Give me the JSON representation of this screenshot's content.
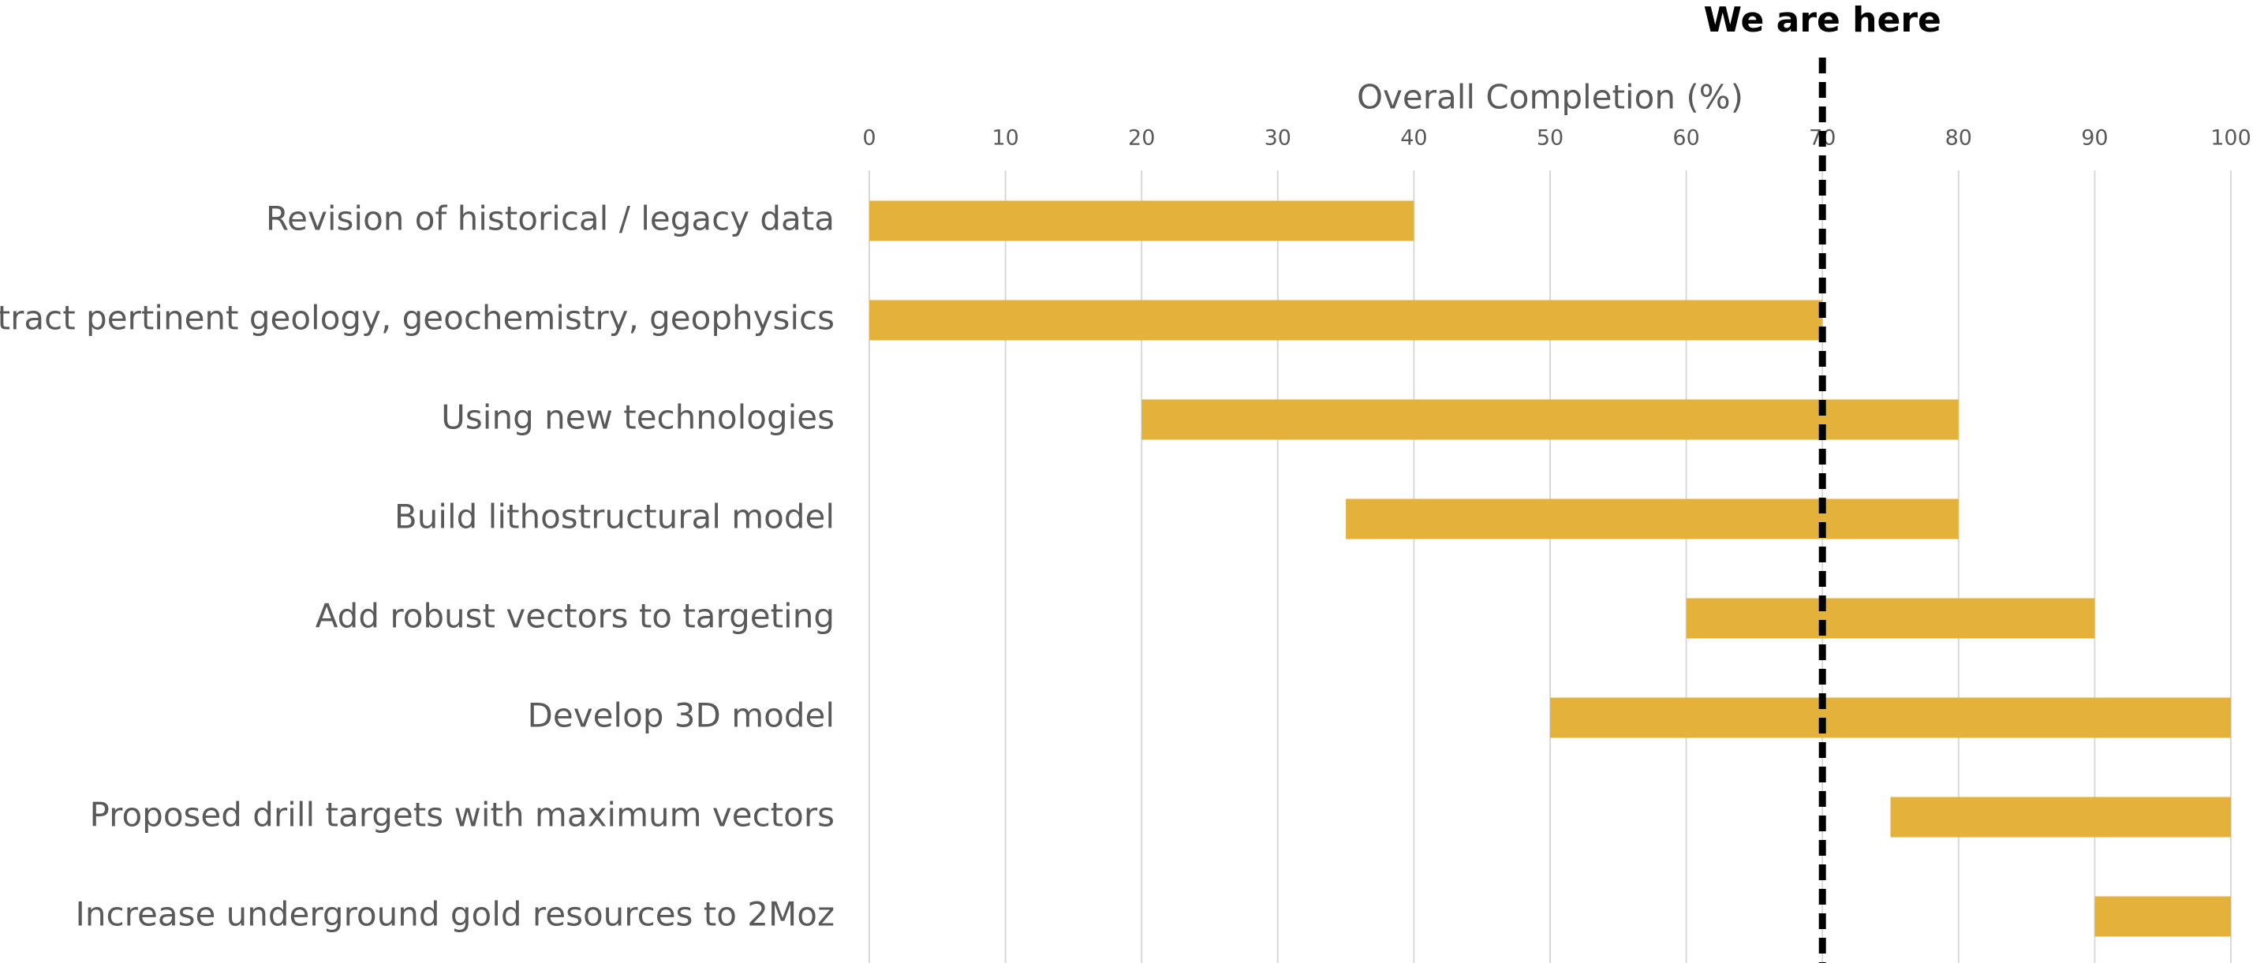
{
  "chart_data": {
    "type": "gantt",
    "x_label": "Overall Completion (%)",
    "categories": [
      "Revision of historical / legacy data",
      "Extract pertinent geology, geochemistry, geophysics",
      "Using new technologies",
      "Build lithostructural model",
      "Add robust vectors to targeting",
      "Develop 3D model",
      "Proposed drill targets with maximum vectors",
      "Increase underground gold resources to 2Moz"
    ],
    "start": [
      0,
      0,
      20,
      35,
      60,
      50,
      75,
      90
    ],
    "end": [
      40,
      70,
      80,
      80,
      90,
      100,
      100,
      100
    ],
    "color": "#e4b23a",
    "xlim": [
      0,
      100
    ],
    "xticks": [
      0,
      10,
      20,
      30,
      40,
      50,
      60,
      70,
      80,
      90,
      100
    ],
    "grid": true,
    "marker": {
      "label": "We are here",
      "value": 70
    }
  }
}
